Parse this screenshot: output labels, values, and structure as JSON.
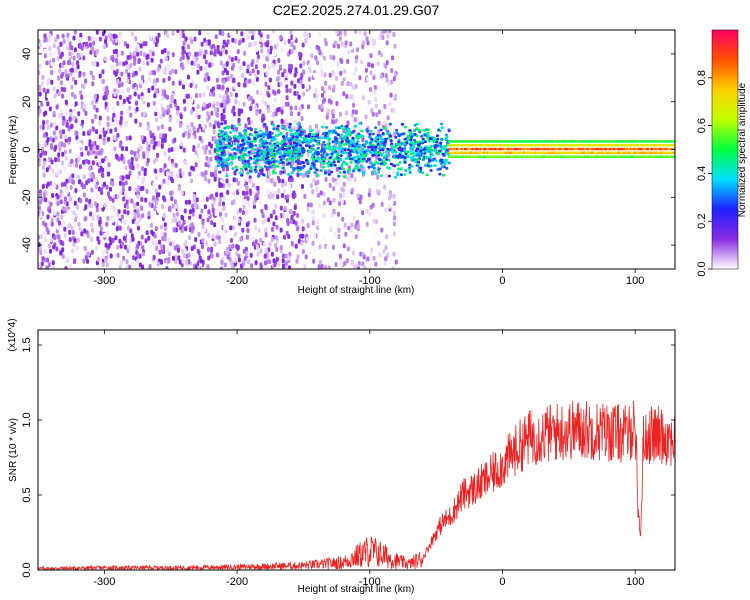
{
  "chart_data": [
    {
      "type": "heatmap",
      "title": "C2E2.2025.274.01.29.G07",
      "xlabel": "Height of straight line (km)",
      "ylabel": "Frequency (Hz)",
      "xlim": [
        -350,
        130
      ],
      "ylim": [
        -50,
        50
      ],
      "xticks": [
        -300,
        -200,
        -100,
        0,
        100
      ],
      "yticks": [
        -40,
        -20,
        0,
        20,
        40
      ],
      "colorbar": {
        "label": "Normalized spectral amplitude",
        "range": [
          0,
          1
        ],
        "ticks": [
          "0.0",
          "0.2",
          "0.4",
          "0.6",
          "0.8"
        ],
        "tick_values": [
          0.0,
          0.2,
          0.4,
          0.6,
          0.8
        ],
        "colors": [
          "#ffffff",
          "#8a2be2",
          "#2020ff",
          "#00e0ff",
          "#00ff40",
          "#c0ff00",
          "#ffd000",
          "#ff5000",
          "#ff0060"
        ]
      },
      "regions": [
        {
          "x_range": [
            -350,
            -150
          ],
          "freq_range": [
            -50,
            50
          ],
          "amplitude": [
            0.0,
            0.15
          ],
          "pattern": "scattered noise"
        },
        {
          "x_range": [
            -150,
            -80
          ],
          "freq_range": [
            -50,
            50
          ],
          "amplitude": [
            0.0,
            0.1
          ],
          "pattern": "sparse noise"
        },
        {
          "x_range": [
            -215,
            -40
          ],
          "freq_range": [
            -12,
            12
          ],
          "amplitude": [
            0.2,
            0.5
          ],
          "pattern": "signal onset near 0 Hz"
        },
        {
          "x_range": [
            -40,
            130
          ],
          "freq_range": [
            -3,
            4
          ],
          "amplitude": [
            0.4,
            1.0
          ],
          "pattern": "narrow carrier line near 0 Hz"
        }
      ]
    },
    {
      "type": "line",
      "xlabel": "Height of straight line (km)",
      "ylabel": "SNR (10 * v/v)",
      "y_multiplier": "(x10^4)",
      "xlim": [
        -350,
        130
      ],
      "ylim": [
        0,
        1.6
      ],
      "xticks": [
        -300,
        -200,
        -100,
        0,
        100
      ],
      "yticks": [
        "0.0",
        "0.5",
        "1.0",
        "1.5"
      ],
      "ytick_values": [
        0.0,
        0.5,
        1.0,
        1.5
      ],
      "color": "#ee2222",
      "series": [
        {
          "x": [
            -350,
            -300,
            -250,
            -200,
            -150,
            -120,
            -100,
            -90,
            -80,
            -70,
            -60,
            -50,
            -45,
            -40,
            -35,
            -30,
            -20,
            -10,
            0,
            10,
            20,
            30,
            40,
            50,
            60,
            70,
            80,
            90,
            95,
            100,
            102,
            104,
            106,
            110,
            120,
            130
          ],
          "values": [
            0.01,
            0.015,
            0.015,
            0.02,
            0.03,
            0.05,
            0.13,
            0.1,
            0.06,
            0.04,
            0.08,
            0.25,
            0.32,
            0.35,
            0.42,
            0.5,
            0.55,
            0.62,
            0.7,
            0.8,
            0.88,
            0.9,
            0.92,
            0.93,
            0.94,
            0.93,
            0.92,
            0.91,
            0.9,
            1.0,
            0.45,
            0.2,
            0.85,
            0.9,
            0.9,
            0.87
          ]
        }
      ]
    }
  ]
}
